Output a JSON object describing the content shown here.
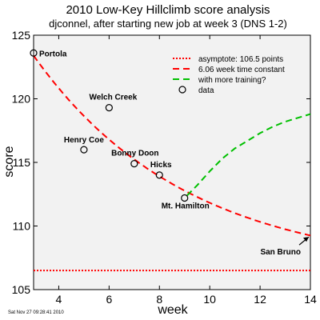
{
  "chart_data": {
    "type": "scatter",
    "title": "2010 Low-Key Hillclimb score analysis",
    "subtitle": "djconnel, after starting new job at week 3 (DNS 1-2)",
    "xlabel": "week",
    "ylabel": "score",
    "xlim": [
      3,
      14
    ],
    "ylim": [
      105,
      125
    ],
    "xticks": [
      4,
      6,
      8,
      10,
      12,
      14
    ],
    "yticks": [
      105,
      110,
      115,
      120,
      125
    ],
    "grid": false,
    "legend_position": "top-right",
    "legend": [
      {
        "label": "asymptote: 106.5 points",
        "style": "dotted",
        "color": "#ff0000"
      },
      {
        "label": "6.06 week time constant",
        "style": "dashed",
        "color": "#ff0000"
      },
      {
        "label": "with more training?",
        "style": "dashed",
        "color": "#00c000"
      },
      {
        "label": "data",
        "style": "marker"
      }
    ],
    "points": [
      {
        "label": "Portola",
        "x": 3,
        "y": 123.6
      },
      {
        "label": "Henry Coe",
        "x": 5,
        "y": 116.0
      },
      {
        "label": "Welch Creek",
        "x": 6,
        "y": 119.3
      },
      {
        "label": "Bonny Doon",
        "x": 7,
        "y": 114.9
      },
      {
        "label": "Hicks",
        "x": 8,
        "y": 114.0
      },
      {
        "label": "Mt. Hamilton",
        "x": 9,
        "y": 112.2
      }
    ],
    "extra_annotations": [
      {
        "label": "San Bruno",
        "x": 14,
        "y": 109.2
      }
    ],
    "asymptote": 106.5,
    "time_constant_weeks": 6.06,
    "fit_curve": {
      "x0": 3,
      "y0": 123.4
    },
    "training_curve": {
      "x": [
        9.1,
        9.5,
        10,
        10.5,
        11,
        11.5,
        12,
        12.5,
        13,
        13.5,
        14
      ],
      "y": [
        112.4,
        113.2,
        114.3,
        115.3,
        116.1,
        116.7,
        117.3,
        117.8,
        118.2,
        118.5,
        118.8
      ]
    }
  },
  "footer_timestamp": "Sat Nov 27 09:28:41 2010",
  "colors": {
    "fit": "#ff0000",
    "training": "#00c000",
    "plot_bg": "#f2f2f2"
  }
}
